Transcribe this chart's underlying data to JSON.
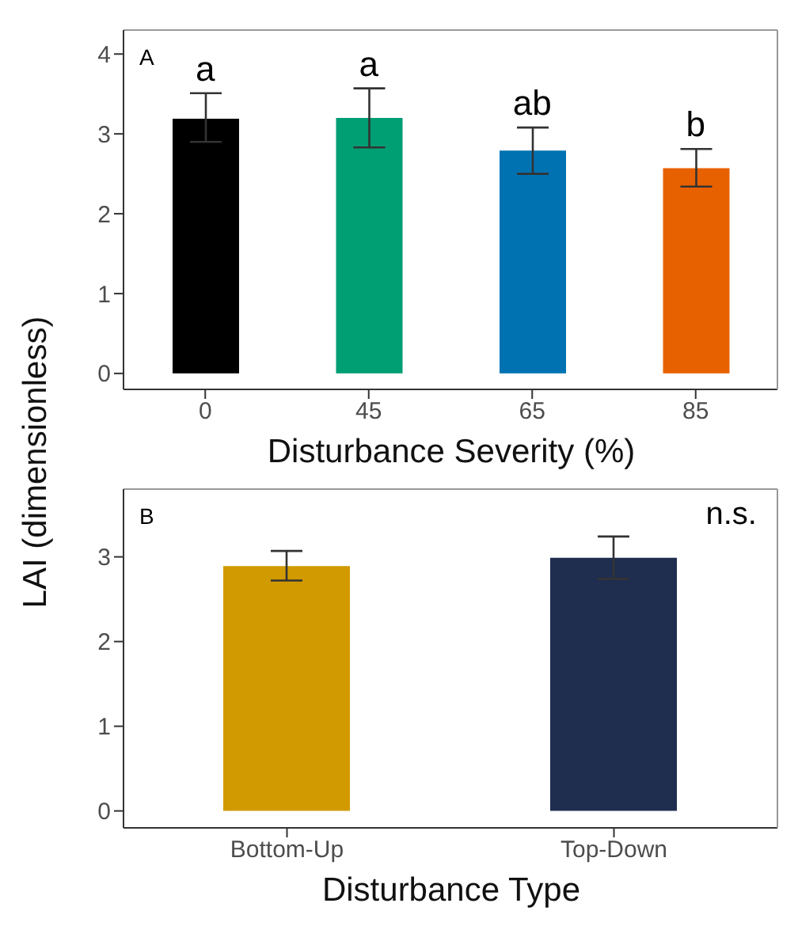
{
  "chart_data": [
    {
      "type": "bar",
      "categories": [
        "0",
        "45",
        "65",
        "85"
      ],
      "values": [
        3.19,
        3.2,
        2.79,
        2.57
      ],
      "colors": [
        "#000000",
        "#009e73",
        "#0072b2",
        "#e86100"
      ],
      "errors": [
        [
          2.9,
          3.51
        ],
        [
          2.83,
          3.57
        ],
        [
          2.5,
          3.08
        ],
        [
          2.34,
          2.81
        ]
      ],
      "xlabel": "Disturbance Severity (%)",
      "ylabel": "LAI (dimensionless)",
      "ylim": [
        -0.2,
        4.3
      ],
      "yticks": [
        0,
        1,
        2,
        3,
        4
      ],
      "grid": false,
      "legend": false,
      "annotations": [
        "A",
        "a",
        "a",
        "ab",
        "b"
      ]
    },
    {
      "type": "bar",
      "categories": [
        "Bottom-Up",
        "Top-Down"
      ],
      "values": [
        2.89,
        2.99
      ],
      "colors": [
        "#d19a00",
        "#1f2d4f"
      ],
      "errors": [
        [
          2.72,
          3.07
        ],
        [
          2.74,
          3.24
        ]
      ],
      "xlabel": "Disturbance Type",
      "ylim": [
        -0.2,
        3.8
      ],
      "yticks": [
        0,
        1,
        2,
        3
      ],
      "grid": false,
      "legend": false,
      "annotations": [
        "B",
        "n.s."
      ]
    }
  ]
}
